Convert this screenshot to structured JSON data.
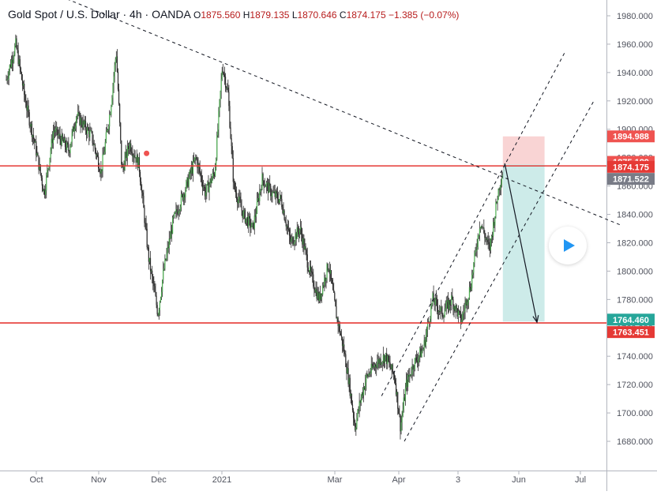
{
  "header": {
    "title": "Gold Spot / U.S. Dollar · 4h · OANDA",
    "o_label": "O",
    "o_value": "1875.560",
    "h_label": "H",
    "h_value": "1879.135",
    "l_label": "L",
    "l_value": "1870.646",
    "c_label": "C",
    "c_value": "1874.175",
    "change": "−1.385 (−0.07%)"
  },
  "colors": {
    "up": "#26a69a",
    "down": "#ef5350",
    "candle": "#2b2b2b",
    "hline": "#e53935",
    "stop_zone": "#f8cdcd",
    "target_zone": "#c4e7e5",
    "axis_text": "#50535e",
    "grid": "#f0f3fa"
  },
  "chart_data": {
    "type": "candlestick",
    "instrument": "Gold Spot / U.S. Dollar",
    "timeframe": "4h",
    "ylim": [
      1660,
      1990
    ],
    "y_ticks": [
      1680,
      1700,
      1720,
      1740,
      1760,
      1780,
      1800,
      1820,
      1840,
      1860,
      1880,
      1900,
      1920,
      1940,
      1960,
      1980
    ],
    "x_ticks": [
      "Oct",
      "Nov",
      "Dec",
      "2021",
      "Mar",
      "Apr",
      "3",
      "Jun",
      "Jul"
    ],
    "price_path": [
      {
        "t": 0.0,
        "p": 1935
      },
      {
        "t": 0.5,
        "p": 1960
      },
      {
        "t": 1.0,
        "p": 1920
      },
      {
        "t": 1.5,
        "p": 1890
      },
      {
        "t": 2.0,
        "p": 1855
      },
      {
        "t": 2.5,
        "p": 1900
      },
      {
        "t": 3.3,
        "p": 1885
      },
      {
        "t": 3.7,
        "p": 1910
      },
      {
        "t": 4.5,
        "p": 1895
      },
      {
        "t": 5.0,
        "p": 1870
      },
      {
        "t": 5.5,
        "p": 1915
      },
      {
        "t": 5.8,
        "p": 1955
      },
      {
        "t": 6.1,
        "p": 1870
      },
      {
        "t": 6.5,
        "p": 1890
      },
      {
        "t": 7.0,
        "p": 1875
      },
      {
        "t": 7.5,
        "p": 1810
      },
      {
        "t": 8.0,
        "p": 1770
      },
      {
        "t": 8.3,
        "p": 1800
      },
      {
        "t": 8.8,
        "p": 1835
      },
      {
        "t": 9.5,
        "p": 1860
      },
      {
        "t": 10.0,
        "p": 1880
      },
      {
        "t": 10.5,
        "p": 1855
      },
      {
        "t": 11.0,
        "p": 1870
      },
      {
        "t": 11.4,
        "p": 1945
      },
      {
        "t": 11.7,
        "p": 1925
      },
      {
        "t": 12.0,
        "p": 1860
      },
      {
        "t": 12.5,
        "p": 1840
      },
      {
        "t": 13.0,
        "p": 1830
      },
      {
        "t": 13.5,
        "p": 1865
      },
      {
        "t": 14.0,
        "p": 1855
      },
      {
        "t": 14.5,
        "p": 1850
      },
      {
        "t": 15.0,
        "p": 1820
      },
      {
        "t": 15.5,
        "p": 1830
      },
      {
        "t": 16.0,
        "p": 1800
      },
      {
        "t": 16.5,
        "p": 1780
      },
      {
        "t": 17.0,
        "p": 1805
      },
      {
        "t": 17.4,
        "p": 1770
      },
      {
        "t": 17.8,
        "p": 1745
      },
      {
        "t": 18.1,
        "p": 1720
      },
      {
        "t": 18.4,
        "p": 1690
      },
      {
        "t": 18.7,
        "p": 1710
      },
      {
        "t": 19.0,
        "p": 1725
      },
      {
        "t": 19.5,
        "p": 1735
      },
      {
        "t": 20.0,
        "p": 1740
      },
      {
        "t": 20.5,
        "p": 1725
      },
      {
        "t": 20.8,
        "p": 1690
      },
      {
        "t": 21.1,
        "p": 1720
      },
      {
        "t": 21.5,
        "p": 1735
      },
      {
        "t": 22.0,
        "p": 1745
      },
      {
        "t": 22.5,
        "p": 1780
      },
      {
        "t": 23.0,
        "p": 1770
      },
      {
        "t": 23.5,
        "p": 1780
      },
      {
        "t": 24.0,
        "p": 1765
      },
      {
        "t": 24.5,
        "p": 1790
      },
      {
        "t": 25.0,
        "p": 1835
      },
      {
        "t": 25.5,
        "p": 1815
      },
      {
        "t": 26.0,
        "p": 1860
      },
      {
        "t": 26.3,
        "p": 1875
      }
    ],
    "horizontal_levels": [
      1874.175,
      1763.451
    ],
    "trendlines": [
      {
        "name": "descending-resistance",
        "from": {
          "t": -0.5,
          "p": 2012
        },
        "to": {
          "t": 32.5,
          "p": 1832
        }
      },
      {
        "name": "channel-upper",
        "from": {
          "t": 19.8,
          "p": 1712
        },
        "to": {
          "t": 29.5,
          "p": 1955
        }
      },
      {
        "name": "channel-lower",
        "from": {
          "t": 21.0,
          "p": 1680
        },
        "to": {
          "t": 31.0,
          "p": 1920
        }
      }
    ],
    "short_position": {
      "entry": 1875.189,
      "stop": 1894.988,
      "target": 1764.46,
      "t_start": 26.2,
      "t_end": 28.4
    },
    "projection_arrow": {
      "from": {
        "t": 26.3,
        "p": 1876
      },
      "to": {
        "t": 28.0,
        "p": 1764
      }
    },
    "marker": {
      "t": 7.4,
      "p": 1883
    },
    "price_labels": [
      {
        "value": "1894.988",
        "price": 1894.988,
        "color": "#ef5350"
      },
      {
        "value": "1875.189",
        "price": 1877.0,
        "color": "#ef5350"
      },
      {
        "value": "1874.175",
        "price": 1873.5,
        "color": "#e53935"
      },
      {
        "value": "1871.522",
        "price": 1865.0,
        "color": "#787b86"
      },
      {
        "value": "1764.460",
        "price": 1765.8,
        "color": "#26a69a"
      },
      {
        "value": "1763.451",
        "price": 1757.0,
        "color": "#e53935"
      }
    ]
  }
}
